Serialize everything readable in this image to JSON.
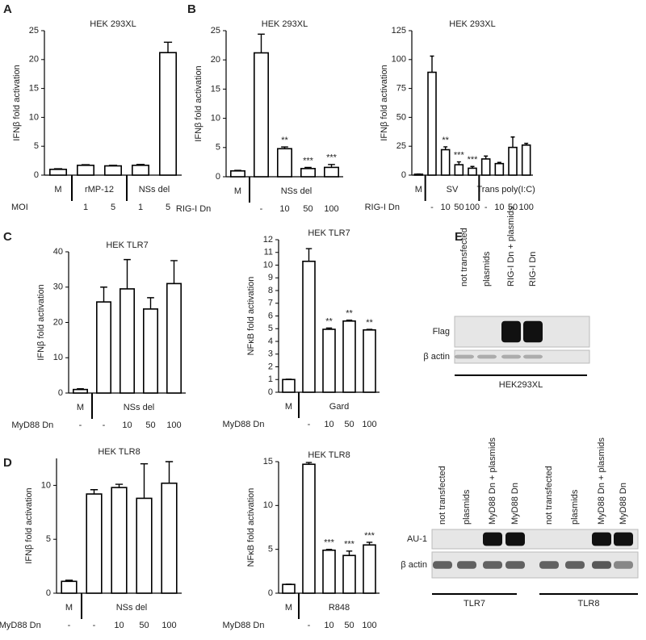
{
  "panel_labels": [
    "A",
    "B",
    "C",
    "D",
    "E"
  ],
  "chart_data": [
    {
      "type": "bar",
      "title": "HEK 293XL",
      "ylabel": "IFNβ fold activation",
      "ylim": [
        0,
        25
      ],
      "yticks": [
        0,
        5,
        10,
        15,
        20,
        25
      ],
      "categories": [
        null,
        "1",
        "5",
        "1",
        "5"
      ],
      "values": [
        1.0,
        1.7,
        1.6,
        1.7,
        21.2
      ],
      "errors": [
        0.1,
        0.1,
        0.1,
        0.15,
        1.8
      ],
      "groups": [
        {
          "label": "M",
          "span": 1
        },
        {
          "label": "rMP-12",
          "span": 2
        },
        {
          "label": "NSs del",
          "span": 2
        }
      ],
      "row_label": "MOI",
      "stars": [
        null,
        null,
        null,
        null,
        null
      ]
    },
    {
      "type": "bar",
      "title": "HEK 293XL",
      "ylabel": "IFNβ fold activation",
      "ylim": [
        0,
        25
      ],
      "yticks": [
        0,
        5,
        10,
        15,
        20,
        25
      ],
      "categories": [
        null,
        "-",
        "10",
        "50",
        "100"
      ],
      "values": [
        1.0,
        21.2,
        4.8,
        1.4,
        1.6
      ],
      "errors": [
        0.1,
        3.2,
        0.3,
        0.2,
        0.5
      ],
      "groups": [
        {
          "label": "M",
          "span": 1
        },
        {
          "label": "NSs del",
          "span": 4
        }
      ],
      "row_label": "RIG-I Dn",
      "stars": [
        null,
        null,
        "**",
        "***",
        "***"
      ]
    },
    {
      "type": "bar",
      "title": "HEK 293XL",
      "ylabel": "IFNβ fold activation",
      "ylim": [
        0,
        125
      ],
      "yticks": [
        0,
        25,
        50,
        75,
        100,
        125
      ],
      "categories": [
        null,
        "-",
        "10",
        "50",
        "100",
        "-",
        "10",
        "50",
        "100"
      ],
      "values": [
        0.8,
        89,
        22,
        9,
        6,
        14,
        10,
        24,
        26
      ],
      "errors": [
        0.2,
        14,
        2.5,
        2.5,
        1.5,
        2.5,
        1,
        9,
        1.5
      ],
      "groups": [
        {
          "label": "M",
          "span": 1
        },
        {
          "label": "SV",
          "span": 4
        },
        {
          "label": "Trans poly(I:C)",
          "span": 4
        }
      ],
      "row_label": "RIG-I Dn",
      "stars": [
        null,
        null,
        "**",
        "***",
        "***",
        null,
        null,
        null,
        null
      ]
    },
    {
      "type": "bar",
      "title": "HEK TLR7",
      "ylabel": "IFNβ fold activation",
      "ylim": [
        0,
        40
      ],
      "yticks": [
        0,
        10,
        20,
        30,
        40
      ],
      "categories": [
        "-",
        "-",
        "10",
        "50",
        "100"
      ],
      "values": [
        1.0,
        25.8,
        29.5,
        23.8,
        31
      ],
      "errors": [
        0.2,
        4.2,
        8.3,
        3.2,
        6.5
      ],
      "groups": [
        {
          "label": "M",
          "span": 1
        },
        {
          "label": "NSs del",
          "span": 4
        }
      ],
      "row_label": "MyD88 Dn",
      "stars": [
        null,
        null,
        null,
        null,
        null
      ]
    },
    {
      "type": "bar",
      "title": "HEK TLR7",
      "ylabel": "NFκB fold activation",
      "ylim": [
        0,
        12
      ],
      "yticks": [
        0,
        1,
        2,
        3,
        4,
        5,
        6,
        7,
        8,
        9,
        10,
        11,
        12
      ],
      "categories": [
        null,
        "-",
        "10",
        "50",
        "100"
      ],
      "values": [
        1.0,
        10.3,
        4.95,
        5.6,
        4.9
      ],
      "errors": [
        0.03,
        1.0,
        0.1,
        0.07,
        0.05
      ],
      "groups": [
        {
          "label": "M",
          "span": 1
        },
        {
          "label": "Gard",
          "span": 4
        }
      ],
      "row_label": "MyD88 Dn",
      "stars": [
        null,
        null,
        "**",
        "**",
        "**"
      ]
    },
    {
      "type": "bar",
      "title": "HEK TLR8",
      "ylabel": "IFNβ fold activation",
      "ylim": [
        0,
        12.5
      ],
      "yticks": [
        0,
        5,
        10
      ],
      "categories": [
        "-",
        "-",
        "10",
        "50",
        "100"
      ],
      "values": [
        1.1,
        9.2,
        9.8,
        8.8,
        10.2
      ],
      "errors": [
        0.1,
        0.4,
        0.3,
        3.2,
        2.0
      ],
      "groups": [
        {
          "label": "M",
          "span": 1
        },
        {
          "label": "NSs del",
          "span": 4
        }
      ],
      "row_label": "MyD88 Dn",
      "stars": [
        null,
        null,
        null,
        null,
        null
      ]
    },
    {
      "type": "bar",
      "title": "HEK TLR8",
      "ylabel": "NFκB fold activation",
      "ylim": [
        0,
        15
      ],
      "yticks": [
        0,
        5,
        10,
        15
      ],
      "categories": [
        null,
        "-",
        "10",
        "50",
        "100"
      ],
      "values": [
        1.0,
        14.7,
        4.9,
        4.3,
        5.5
      ],
      "errors": [
        0.03,
        0.2,
        0.1,
        0.5,
        0.3
      ],
      "groups": [
        {
          "label": "M",
          "span": 1
        },
        {
          "label": "R848",
          "span": 4
        }
      ],
      "row_label": "MyD88 Dn",
      "stars": [
        null,
        null,
        "***",
        "***",
        "***"
      ]
    }
  ],
  "blots": [
    {
      "lanes": [
        "not transfected",
        "plasmids",
        "RIG-I Dn + plasmids",
        "RIG-I Dn"
      ],
      "rows": [
        "Flag",
        "β actin"
      ],
      "groups": [
        "HEK293XL"
      ]
    },
    {
      "lanes": [
        "not transfected",
        "plasmids",
        "MyD88 Dn + plasmids",
        "MyD88 Dn",
        "not transfected",
        "plasmids",
        "MyD88 Dn + plasmids",
        "MyD88 Dn"
      ],
      "rows": [
        "AU-1",
        "β actin"
      ],
      "groups": [
        "TLR7",
        "TLR8"
      ]
    }
  ]
}
